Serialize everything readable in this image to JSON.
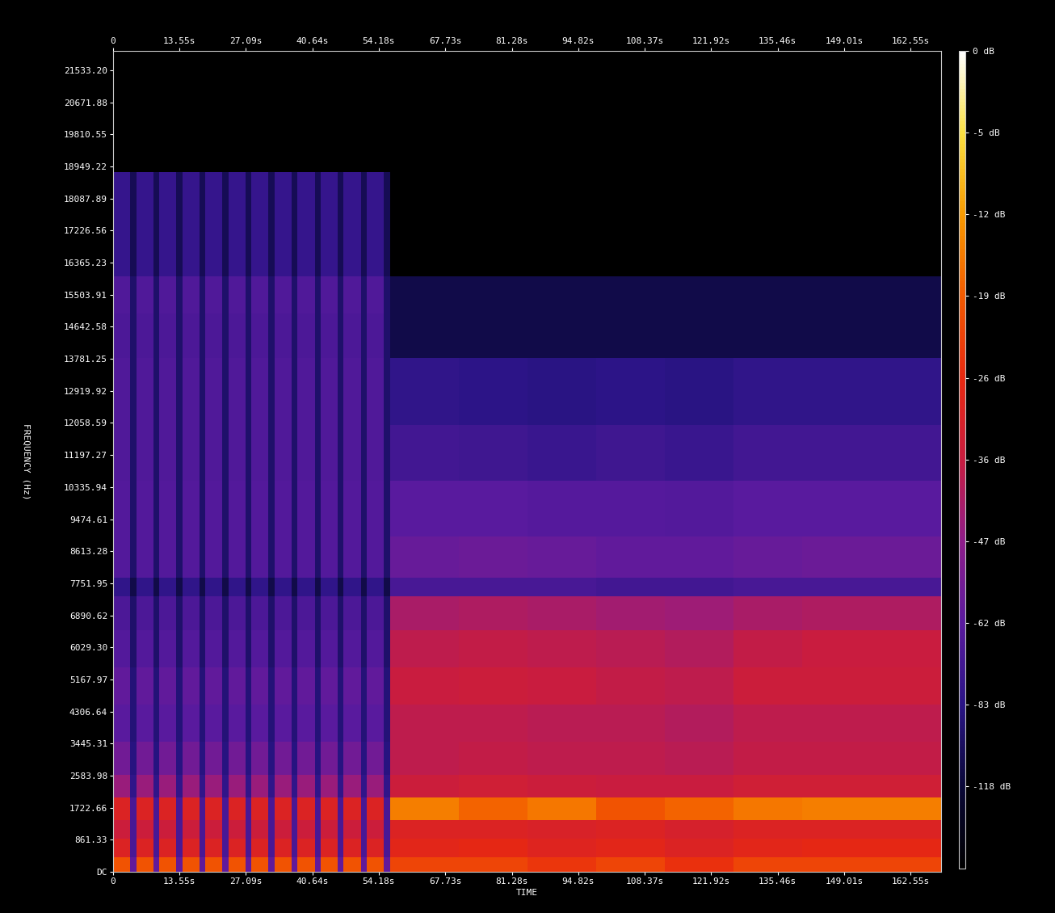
{
  "chart_data": {
    "type": "spectrogram",
    "xlabel": "TIME",
    "ylabel": "FREQUENCY (Hz)",
    "xlim": [
      0,
      168.8
    ],
    "ylim": [
      0,
      22050
    ],
    "xticks": [
      {
        "value": 0,
        "label": "0"
      },
      {
        "value": 13.55,
        "label": "13.55s"
      },
      {
        "value": 27.09,
        "label": "27.09s"
      },
      {
        "value": 40.64,
        "label": "40.64s"
      },
      {
        "value": 54.18,
        "label": "54.18s"
      },
      {
        "value": 67.73,
        "label": "67.73s"
      },
      {
        "value": 81.28,
        "label": "81.28s"
      },
      {
        "value": 94.82,
        "label": "94.82s"
      },
      {
        "value": 108.37,
        "label": "108.37s"
      },
      {
        "value": 121.92,
        "label": "121.92s"
      },
      {
        "value": 135.46,
        "label": "135.46s"
      },
      {
        "value": 149.01,
        "label": "149.01s"
      },
      {
        "value": 162.55,
        "label": "162.55s"
      }
    ],
    "yticks": [
      {
        "value": 0,
        "label": "DC"
      },
      861.33,
      1722.66,
      2583.98,
      3445.31,
      4306.64,
      5167.97,
      {
        "value": 6029.3,
        "label": "6029.30"
      },
      6890.62,
      7751.95,
      8613.28,
      9474.61,
      10335.94,
      11197.27,
      12058.59,
      12919.92,
      13781.25,
      14642.58,
      15503.91,
      16365.23,
      17226.56,
      18087.89,
      18949.22,
      19810.55,
      20671.88,
      {
        "value": 21533.2,
        "label": "21533.20"
      }
    ],
    "x_edges": [
      0,
      3.5,
      4.7,
      8.2,
      9.4,
      12.9,
      14.1,
      17.6,
      18.8,
      22.3,
      23.5,
      27.0,
      28.2,
      31.7,
      32.9,
      36.4,
      37.6,
      41.1,
      42.3,
      45.8,
      47.0,
      50.5,
      51.7,
      55.2,
      56.5,
      70.5,
      84.5,
      98.5,
      112.5,
      126.5,
      140.5,
      168.8
    ],
    "y_edges": [
      0,
      400,
      900,
      1400,
      2000,
      2600,
      3500,
      4500,
      5500,
      6500,
      7400,
      7900,
      9000,
      10500,
      12000,
      13800,
      15000,
      16000,
      17000,
      18800,
      22050
    ],
    "cells": [
      [
        -20,
        -60,
        -20,
        -60,
        -20,
        -60,
        -20,
        -60,
        -20,
        -60,
        -20,
        -60,
        -20,
        -60,
        -20,
        -60,
        -20,
        -60,
        -20,
        -60,
        -20,
        -60,
        -20,
        -60,
        -22,
        -22,
        -24,
        -22,
        -25,
        -22,
        -22
      ],
      [
        -30,
        -70,
        -30,
        -70,
        -30,
        -70,
        -30,
        -70,
        -30,
        -70,
        -30,
        -70,
        -30,
        -70,
        -30,
        -70,
        -30,
        -70,
        -30,
        -70,
        -30,
        -70,
        -30,
        -70,
        -28,
        -27,
        -29,
        -28,
        -30,
        -28,
        -27
      ],
      [
        -35,
        -70,
        -35,
        -70,
        -35,
        -70,
        -35,
        -70,
        -35,
        -70,
        -35,
        -70,
        -35,
        -70,
        -35,
        -70,
        -35,
        -70,
        -35,
        -70,
        -35,
        -70,
        -35,
        -70,
        -30,
        -30,
        -31,
        -30,
        -32,
        -30,
        -30
      ],
      [
        -30,
        -70,
        -30,
        -70,
        -30,
        -70,
        -30,
        -70,
        -30,
        -70,
        -30,
        -70,
        -30,
        -70,
        -30,
        -70,
        -30,
        -70,
        -30,
        -70,
        -30,
        -70,
        -30,
        -70,
        -15,
        -18,
        -16,
        -20,
        -18,
        -16,
        -15
      ],
      [
        -45,
        -80,
        -45,
        -80,
        -45,
        -80,
        -45,
        -80,
        -45,
        -80,
        -45,
        -80,
        -45,
        -80,
        -45,
        -80,
        -45,
        -80,
        -45,
        -80,
        -45,
        -80,
        -45,
        -80,
        -35,
        -34,
        -35,
        -36,
        -36,
        -34,
        -34
      ],
      [
        -55,
        -85,
        -55,
        -85,
        -55,
        -85,
        -55,
        -85,
        -55,
        -85,
        -55,
        -85,
        -55,
        -85,
        -55,
        -85,
        -55,
        -85,
        -55,
        -85,
        -55,
        -85,
        -55,
        -85,
        -38,
        -37,
        -38,
        -38,
        -39,
        -37,
        -37
      ],
      [
        -62,
        -90,
        -62,
        -90,
        -62,
        -90,
        -62,
        -90,
        -62,
        -90,
        -62,
        -90,
        -62,
        -90,
        -62,
        -90,
        -62,
        -90,
        -62,
        -90,
        -62,
        -90,
        -62,
        -90,
        -38,
        -38,
        -39,
        -39,
        -40,
        -38,
        -38
      ],
      [
        -60,
        -90,
        -60,
        -90,
        -60,
        -90,
        -60,
        -90,
        -60,
        -90,
        -60,
        -90,
        -60,
        -90,
        -60,
        -90,
        -60,
        -90,
        -60,
        -90,
        -60,
        -90,
        -60,
        -90,
        -36,
        -35,
        -36,
        -37,
        -38,
        -35,
        -35
      ],
      [
        -65,
        -95,
        -65,
        -95,
        -65,
        -95,
        -65,
        -95,
        -65,
        -95,
        -65,
        -95,
        -65,
        -95,
        -65,
        -95,
        -65,
        -95,
        -65,
        -95,
        -65,
        -95,
        -65,
        -95,
        -38,
        -37,
        -38,
        -39,
        -40,
        -37,
        -36
      ],
      [
        -68,
        -95,
        -68,
        -95,
        -68,
        -95,
        -68,
        -95,
        -68,
        -95,
        -68,
        -95,
        -68,
        -95,
        -68,
        -95,
        -68,
        -95,
        -68,
        -95,
        -68,
        -95,
        -68,
        -95,
        -42,
        -41,
        -42,
        -43,
        -44,
        -42,
        -41
      ],
      [
        -80,
        -110,
        -80,
        -110,
        -80,
        -110,
        -80,
        -110,
        -80,
        -110,
        -80,
        -110,
        -80,
        -110,
        -80,
        -110,
        -80,
        -110,
        -80,
        -110,
        -80,
        -110,
        -80,
        -110,
        -70,
        -70,
        -70,
        -72,
        -72,
        -70,
        -70
      ],
      [
        -65,
        -95,
        -65,
        -95,
        -65,
        -95,
        -65,
        -95,
        -65,
        -95,
        -65,
        -95,
        -65,
        -95,
        -65,
        -95,
        -65,
        -95,
        -65,
        -95,
        -65,
        -95,
        -65,
        -95,
        -58,
        -57,
        -58,
        -60,
        -60,
        -58,
        -57
      ],
      [
        -65,
        -95,
        -65,
        -95,
        -65,
        -95,
        -65,
        -95,
        -65,
        -95,
        -65,
        -95,
        -65,
        -95,
        -65,
        -95,
        -65,
        -95,
        -65,
        -95,
        -65,
        -95,
        -65,
        -95,
        -62,
        -62,
        -64,
        -64,
        -65,
        -62,
        -62
      ],
      [
        -66,
        -95,
        -66,
        -95,
        -66,
        -95,
        -66,
        -95,
        -66,
        -95,
        -66,
        -95,
        -66,
        -95,
        -66,
        -95,
        -66,
        -95,
        -66,
        -95,
        -66,
        -95,
        -66,
        -95,
        -72,
        -74,
        -76,
        -74,
        -76,
        -72,
        -72
      ],
      [
        -66,
        -95,
        -66,
        -95,
        -66,
        -95,
        -66,
        -95,
        -66,
        -95,
        -66,
        -95,
        -66,
        -95,
        -66,
        -95,
        -66,
        -95,
        -66,
        -95,
        -66,
        -95,
        -66,
        -95,
        -80,
        -82,
        -84,
        -82,
        -84,
        -80,
        -80
      ],
      [
        -68,
        -95,
        -68,
        -95,
        -68,
        -95,
        -68,
        -95,
        -68,
        -95,
        -68,
        -95,
        -68,
        -95,
        -68,
        -95,
        -68,
        -95,
        -68,
        -95,
        -68,
        -95,
        -68,
        -95,
        -110,
        -110,
        -110,
        -110,
        -110,
        -110,
        -110
      ],
      [
        -66,
        -95,
        -66,
        -95,
        -66,
        -95,
        -66,
        -95,
        -66,
        -95,
        -66,
        -95,
        -66,
        -95,
        -66,
        -95,
        -66,
        -95,
        -66,
        -95,
        -66,
        -95,
        -66,
        -95,
        -110,
        -110,
        -110,
        -110,
        -110,
        -110,
        -110
      ],
      [
        -78,
        -105,
        -78,
        -105,
        -78,
        -105,
        -78,
        -105,
        -78,
        -105,
        -78,
        -105,
        -78,
        -105,
        -78,
        -105,
        -78,
        -105,
        -78,
        -105,
        -78,
        -105,
        -78,
        -105,
        -150,
        -150,
        -150,
        -150,
        -150,
        -150,
        -150
      ],
      [
        -78,
        -105,
        -78,
        -105,
        -78,
        -105,
        -78,
        -105,
        -78,
        -105,
        -78,
        -105,
        -78,
        -105,
        -78,
        -105,
        -78,
        -105,
        -78,
        -105,
        -78,
        -105,
        -78,
        -105,
        -150,
        -150,
        -150,
        -150,
        -150,
        -150,
        -150
      ],
      [
        -150,
        -150,
        -150,
        -150,
        -150,
        -150,
        -150,
        -150,
        -150,
        -150,
        -150,
        -150,
        -150,
        -150,
        -150,
        -150,
        -150,
        -150,
        -150,
        -150,
        -150,
        -150,
        -150,
        -150,
        -150,
        -150,
        -150,
        -150,
        -150,
        -150,
        -150
      ]
    ],
    "colorbar": {
      "range": [
        -150,
        0
      ],
      "ticks": [
        {
          "value": 0,
          "label": "0 dB"
        },
        {
          "value": -5,
          "label": "-5 dB"
        },
        {
          "value": -12,
          "label": "-12 dB"
        },
        {
          "value": -19,
          "label": "-19 dB"
        },
        {
          "value": -26,
          "label": "-26 dB"
        },
        {
          "value": -36,
          "label": "-36 dB"
        },
        {
          "value": -47,
          "label": "-47 dB"
        },
        {
          "value": -62,
          "label": "-62 dB"
        },
        {
          "value": -83,
          "label": "-83 dB"
        },
        {
          "value": -118,
          "label": "-118 dB"
        }
      ]
    }
  }
}
